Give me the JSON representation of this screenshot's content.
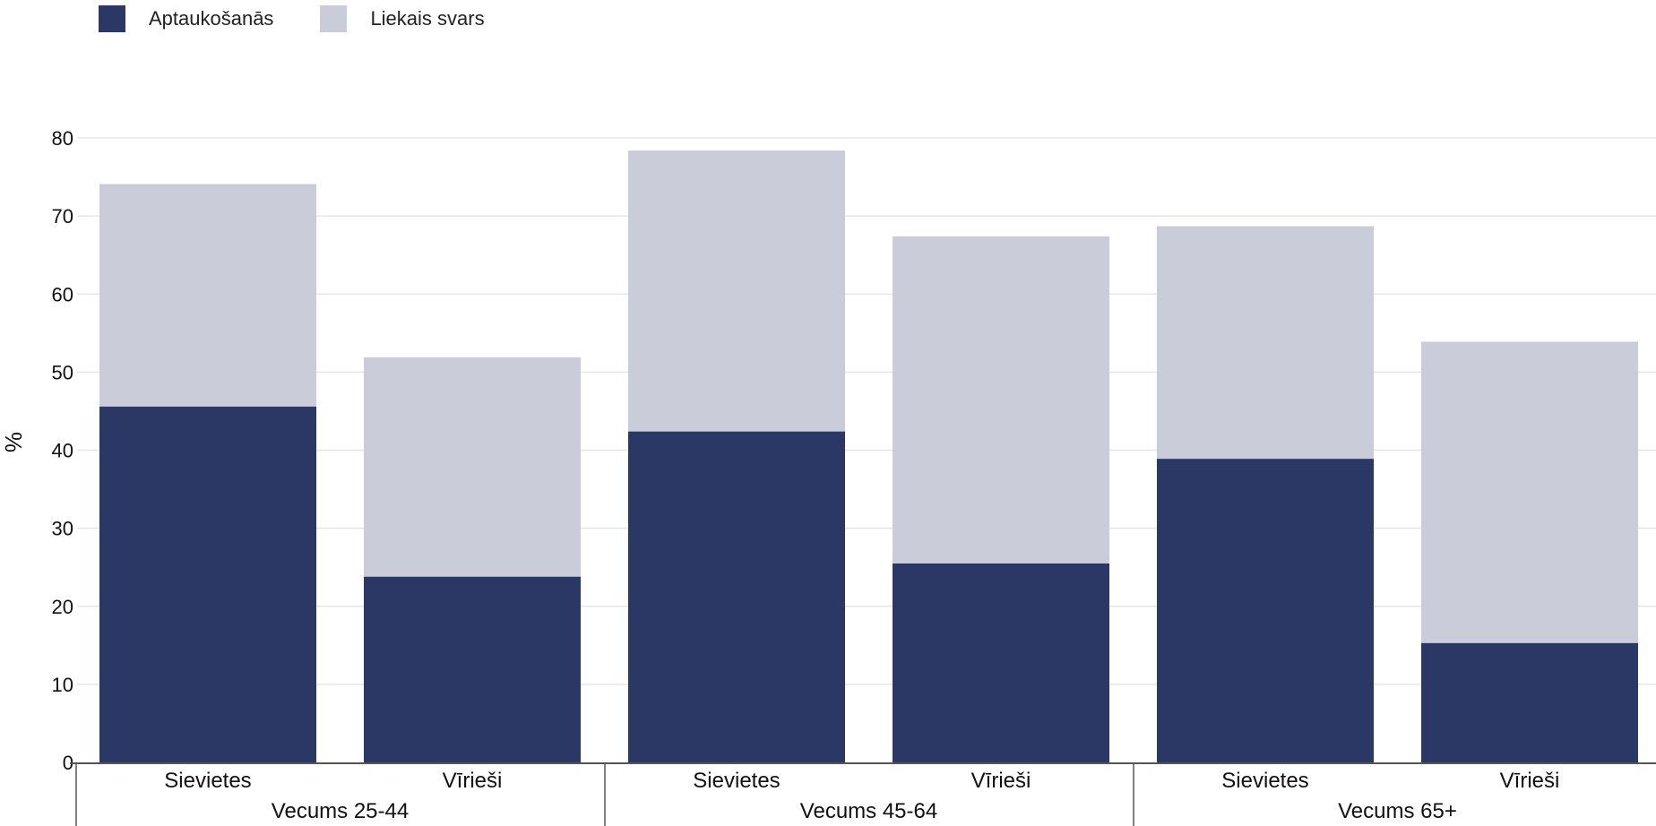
{
  "colors": {
    "obesity": "#2b3765",
    "overweight": "#cacdd9",
    "grid": "#e6e6e6",
    "axis": "#555555"
  },
  "chart_data": {
    "type": "bar",
    "stacked": true,
    "ylabel": "%",
    "ylim": [
      0,
      80
    ],
    "yticks": [
      0,
      10,
      20,
      30,
      40,
      50,
      60,
      70,
      80
    ],
    "grid": true,
    "legend_position": "top-left",
    "groups": [
      "Vecums 25-44",
      "Vecums 45-64",
      "Vecums 65+"
    ],
    "categories": [
      "Sievietes",
      "Vīrieši",
      "Sievietes",
      "Vīrieši",
      "Sievietes",
      "Vīrieši"
    ],
    "category_group": [
      0,
      0,
      1,
      1,
      2,
      2
    ],
    "series": [
      {
        "name": "Aptaukošanās",
        "color": "#2b3765",
        "values": [
          45.6,
          23.8,
          42.4,
          25.5,
          38.9,
          15.3
        ]
      },
      {
        "name": "Liekais svars",
        "color": "#cacdd9",
        "values": [
          28.5,
          28.1,
          36.0,
          41.9,
          29.8,
          38.6
        ]
      }
    ]
  }
}
